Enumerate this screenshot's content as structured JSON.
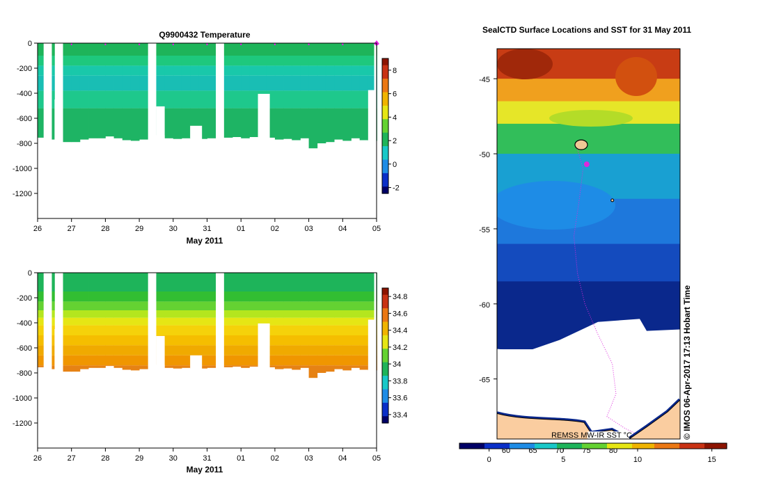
{
  "chart_data": [
    {
      "type": "heatmap",
      "name": "temperature-profile",
      "title": "Q9900432  Temperature",
      "xlabel": "May 2011",
      "x_tick_labels": [
        "26",
        "27",
        "28",
        "29",
        "30",
        "31",
        "01",
        "02",
        "03",
        "04",
        "05"
      ],
      "ylim": [
        -1400,
        0
      ],
      "y_ticks": [
        0,
        -200,
        -400,
        -600,
        -800,
        -1000,
        -1200
      ],
      "y_tick_labels": [
        "0",
        "-200",
        "-400",
        "-600",
        "-800",
        "-1000",
        "-1200"
      ],
      "colorbar_range": [
        -2.5,
        9
      ],
      "colorbar_ticks": [
        -2,
        0,
        2,
        4,
        6,
        8
      ],
      "colorbar_tick_labels": [
        "-2",
        "0",
        "2",
        "4",
        "6",
        "8"
      ],
      "colorbar_palette": [
        "#000066",
        "#0a2fc8",
        "#1e8ce6",
        "#19c8c8",
        "#1eb45a",
        "#64d232",
        "#e6e614",
        "#f0b400",
        "#eb7814",
        "#c83214",
        "#8c1400"
      ],
      "profile_days": [
        0.0,
        0.42,
        0.75,
        1.0,
        1.25,
        1.5,
        1.75,
        2.0,
        2.25,
        2.5,
        2.75,
        3.0,
        3.5,
        3.75,
        4.0,
        4.25,
        4.5,
        4.75,
        5.0,
        5.5,
        5.75,
        6.0,
        6.25,
        6.5,
        6.75,
        7.0,
        7.25,
        7.5,
        7.75,
        8.0,
        8.25,
        8.5,
        8.75,
        9.0,
        9.25,
        9.5,
        9.75,
        10.0
      ],
      "profile_end_days": [
        0.17,
        0.5,
        1.0,
        1.25,
        1.5,
        1.75,
        2.0,
        2.25,
        2.5,
        2.75,
        3.0,
        3.25,
        3.75,
        4.0,
        4.25,
        4.5,
        4.75,
        5.0,
        5.25,
        5.75,
        6.0,
        6.25,
        6.5,
        6.75,
        7.0,
        7.25,
        7.5,
        7.75,
        8.0,
        8.25,
        8.5,
        8.75,
        9.0,
        9.25,
        9.5,
        9.75,
        9.92,
        10.0
      ],
      "max_depths": [
        -755,
        -770,
        -790,
        -790,
        -770,
        -760,
        -760,
        -745,
        -760,
        -775,
        -780,
        -770,
        -735,
        -760,
        -765,
        -760,
        -765,
        -765,
        -760,
        -755,
        -750,
        -760,
        -750,
        -755,
        -755,
        -770,
        -765,
        -775,
        -760,
        -840,
        -800,
        -790,
        -770,
        -780,
        -760,
        -775,
        -780,
        -780
      ],
      "gaps": [
        {
          "start_day": 0.5,
          "end_day": 0.75,
          "bottom": -450
        },
        {
          "start_day": 3.5,
          "end_day": 3.75,
          "bottom": -505
        },
        {
          "start_day": 4.5,
          "end_day": 4.85,
          "bottom": -660
        },
        {
          "start_day": 6.5,
          "end_day": 6.85,
          "bottom": -405
        },
        {
          "start_day": 9.75,
          "end_day": 9.95,
          "bottom": -375
        }
      ],
      "depth_bands": [
        {
          "top": 0,
          "bottom": -100,
          "color": "#1eb45a"
        },
        {
          "top": -100,
          "bottom": -180,
          "color": "#1ec87d"
        },
        {
          "top": -180,
          "bottom": -260,
          "color": "#19c8aa"
        },
        {
          "top": -260,
          "bottom": -380,
          "color": "#19beb4"
        },
        {
          "top": -380,
          "bottom": -520,
          "color": "#1ec88c"
        },
        {
          "top": -520,
          "bottom": -900,
          "color": "#1eb464"
        }
      ],
      "profile_markers": [
        1,
        2,
        3,
        4,
        5,
        6,
        7,
        8,
        9,
        10
      ],
      "marker_color": "#e61ee6"
    },
    {
      "type": "heatmap",
      "name": "salinity-profile",
      "title": "",
      "xlabel": "May 2011",
      "x_tick_labels": [
        "26",
        "27",
        "28",
        "29",
        "30",
        "31",
        "01",
        "02",
        "03",
        "04",
        "05"
      ],
      "ylim": [
        -1400,
        0
      ],
      "y_ticks": [
        0,
        -200,
        -400,
        -600,
        -800,
        -1000,
        -1200
      ],
      "y_tick_labels": [
        "0",
        "-200",
        "-400",
        "-600",
        "-800",
        "-1000",
        "-1200"
      ],
      "colorbar_range": [
        33.3,
        34.9
      ],
      "colorbar_ticks": [
        33.4,
        33.6,
        33.8,
        34.0,
        34.2,
        34.4,
        34.6,
        34.8
      ],
      "colorbar_tick_labels": [
        "33.4",
        "33.6",
        "33.8",
        "34",
        "34.2",
        "34.4",
        "34.6",
        "34.8"
      ],
      "colorbar_palette": [
        "#000066",
        "#0a2fc8",
        "#1e8ce6",
        "#19c8c8",
        "#1eb45a",
        "#64d232",
        "#e6e614",
        "#f0b400",
        "#eb7814",
        "#c83214",
        "#8c1400"
      ],
      "depth_bands": [
        {
          "top": 0,
          "bottom": -150,
          "color": "#1eb45a"
        },
        {
          "top": -150,
          "bottom": -230,
          "color": "#32be32"
        },
        {
          "top": -230,
          "bottom": -300,
          "color": "#64d232"
        },
        {
          "top": -300,
          "bottom": -360,
          "color": "#b4e61e"
        },
        {
          "top": -360,
          "bottom": -420,
          "color": "#e6e614"
        },
        {
          "top": -420,
          "bottom": -500,
          "color": "#f5d20a"
        },
        {
          "top": -500,
          "bottom": -580,
          "color": "#f5be00"
        },
        {
          "top": -580,
          "bottom": -660,
          "color": "#f0aa00"
        },
        {
          "top": -660,
          "bottom": -740,
          "color": "#f09600"
        },
        {
          "top": -740,
          "bottom": -900,
          "color": "#e68214"
        }
      ]
    },
    {
      "type": "heatmap",
      "name": "sst-map",
      "title": "SealCTD Surface Locations and SST for 31 May 2011",
      "y_ticks": [
        -45,
        -50,
        -55,
        -60,
        -65
      ],
      "y_tick_labels": [
        "-45",
        "-50",
        "-55",
        "-60",
        "-65"
      ],
      "ylim": [
        -69,
        -43
      ],
      "x_axis_labels": [
        "60",
        "65",
        "70",
        "75",
        "80"
      ],
      "colorbar_ticks": [
        0,
        5,
        10,
        15
      ],
      "colorbar_tick_labels": [
        "0",
        "5",
        "10",
        "15"
      ],
      "colorbar_range": [
        -2,
        16
      ],
      "caption": "REMSS MW-IR SST °C",
      "credit": "© IMOS 06-Apr-2017 17:13 Hobart Time",
      "lat_bands": [
        {
          "top": -43,
          "bottom": -45,
          "color": "#c83c14"
        },
        {
          "top": -45,
          "bottom": -46.5,
          "color": "#f0a01e"
        },
        {
          "top": -46.5,
          "bottom": -48,
          "color": "#e6e628"
        },
        {
          "top": -48,
          "bottom": -50,
          "color": "#32be5a"
        },
        {
          "top": -50,
          "bottom": -53,
          "color": "#19a0d2"
        },
        {
          "top": -53,
          "bottom": -56,
          "color": "#1e78dc"
        },
        {
          "top": -56,
          "bottom": -58.5,
          "color": "#144bbe"
        },
        {
          "top": -58.5,
          "bottom": -63,
          "color": "#0a288c"
        }
      ],
      "land_color": "#facda0",
      "track_color": "#dc28dc"
    }
  ]
}
